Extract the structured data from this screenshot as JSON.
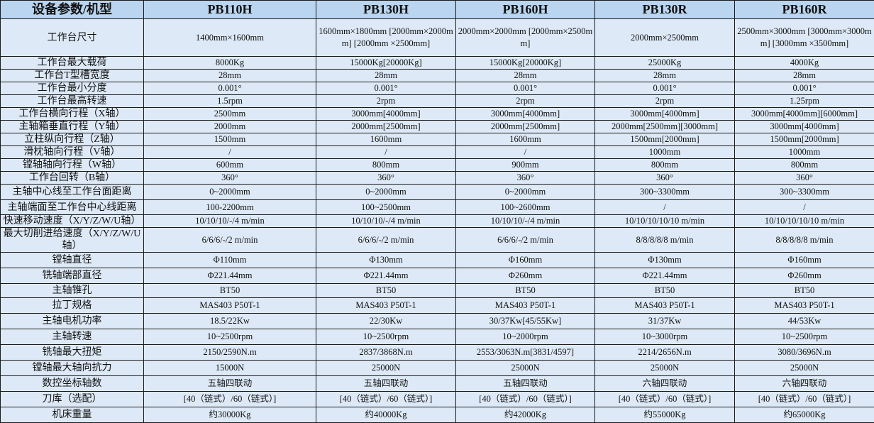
{
  "header": {
    "corner": "设备参数/机型",
    "models": [
      "PB110H",
      "PB130H",
      "PB160H",
      "PB130R",
      "PB160R"
    ]
  },
  "rows": [
    {
      "label": "工作台尺寸",
      "values": [
        "1400mm×1600mm",
        "1600mm×1800mm [2000mm×2000mm] [2000mm ×2500mm]",
        "2000mm×2000mm [2000mm×2500mm]",
        "2000mm×2500mm",
        "2500mm×3000mm [3000mm×3000mm] [3000mm ×3500mm]"
      ]
    },
    {
      "label": "工作台最大载荷",
      "values": [
        "8000Kg",
        "15000Kg[20000Kg]",
        "15000Kg[20000Kg]",
        "25000Kg",
        "4000Kg"
      ]
    },
    {
      "label": "工作台T型槽宽度",
      "values": [
        "28mm",
        "28mm",
        "28mm",
        "28mm",
        "28mm"
      ]
    },
    {
      "label": "工作台最小分度",
      "values": [
        "0.001°",
        "0.001°",
        "0.001°",
        "0.001°",
        "0.001°"
      ]
    },
    {
      "label": "工作台最高转速",
      "values": [
        "1.5rpm",
        "2rpm",
        "2rpm",
        "2rpm",
        "1.25rpm"
      ]
    },
    {
      "label": "工作台横向行程（X轴）",
      "values": [
        "2500mm",
        "3000mm[4000mm]",
        "3000mm[4000mm]",
        "3000mm[4000mm]",
        "3000mm[4000mm][6000mm]"
      ]
    },
    {
      "label": "主轴箱垂直行程（Y轴）",
      "values": [
        "2000mm",
        "2000mm[2500mm]",
        "2000mm[2500mm]",
        "2000mm[2500mm][3000mm]",
        "3000mm[4000mm]"
      ]
    },
    {
      "label": "立柱纵向行程（Z轴）",
      "values": [
        "1500mm",
        "1600mm",
        "1600mm",
        "1500mm[2000mm]",
        "1500mm[2000mm]"
      ]
    },
    {
      "label": "滑枕轴向行程（V轴）",
      "values": [
        "/",
        "/",
        "/",
        "1000mm",
        "1000mm"
      ]
    },
    {
      "label": "镗轴轴向行程（W轴）",
      "values": [
        "600mm",
        "800mm",
        "900mm",
        "800mm",
        "800mm"
      ]
    },
    {
      "label": "工作台回转（B轴）",
      "values": [
        "360°",
        "360°",
        "360°",
        "360°",
        "360°"
      ]
    },
    {
      "label": "主轴中心线至工作台面距离",
      "values": [
        "0~2000mm",
        "0~2000mm",
        "0~2000mm",
        "300~3300mm",
        "300~3300mm"
      ]
    },
    {
      "label": "主轴端面至工作台中心线距离",
      "values": [
        "100-2200mm",
        "100~2500mm",
        "100~2600mm",
        "/",
        "/"
      ]
    },
    {
      "label": "快速移动速度（X/Y/Z/W/U轴）",
      "values": [
        "10/10/10/-/4 m/min",
        "10/10/10/-/4 m/min",
        "10/10/10/-/4 m/min",
        "10/10/10/10/10 m/min",
        "10/10/10/10/10 m/min"
      ]
    },
    {
      "label": "最大切削进给速度（X/Y/Z/W/U轴）",
      "values": [
        "6/6/6/-/2 m/min",
        "6/6/6/-/2 m/min",
        "6/6/6/-/2 m/min",
        "8/8/8/8/8 m/min",
        "8/8/8/8/8 m/min"
      ]
    },
    {
      "label": "镗轴直径",
      "values": [
        "Φ110mm",
        "Φ130mm",
        "Φ160mm",
        "Φ130mm",
        "Φ160mm"
      ]
    },
    {
      "label": "铣轴端部直径",
      "values": [
        "Φ221.44mm",
        "Φ221.44mm",
        "Φ260mm",
        "Φ221.44mm",
        "Φ260mm"
      ]
    },
    {
      "label": "主轴锥孔",
      "values": [
        "BT50",
        "BT50",
        "BT50",
        "BT50",
        "BT50"
      ]
    },
    {
      "label": "拉丁规格",
      "values": [
        "MAS403 P50T-1",
        "MAS403 P50T-1",
        "MAS403 P50T-1",
        "MAS403 P50T-1",
        "MAS403 P50T-1"
      ]
    },
    {
      "label": "主轴电机功率",
      "values": [
        "18.5/22Kw",
        "22/30Kw",
        "30/37Kw[45/55Kw]",
        "31/37Kw",
        "44/53Kw"
      ]
    },
    {
      "label": "主轴转速",
      "values": [
        "10~2500rpm",
        "10~2500rpm",
        "10~2000rpm",
        "10~3000rpm",
        "10~2500rpm"
      ]
    },
    {
      "label": "铣轴最大扭矩",
      "values": [
        "2150/2590N.m",
        "2837/3868N.m",
        "2553/3063N.m[3831/4597]",
        "2214/2656N.m",
        "3080/3696N.m"
      ]
    },
    {
      "label": "镗轴最大轴向抗力",
      "values": [
        "15000N",
        "25000N",
        "25000N",
        "25000N",
        "25000N"
      ]
    },
    {
      "label": "数控坐标轴数",
      "values": [
        "五轴四联动",
        "五轴四联动",
        "五轴四联动",
        "六轴四联动",
        "六轴四联动"
      ]
    },
    {
      "label": "刀库（选配）",
      "values": [
        "[40（链式）/60（链式）]",
        "[40（链式）/60（链式）]",
        "[40（链式）/60（链式）]",
        "[40（链式）/60（链式）]",
        "[40（链式）/60（链式）]"
      ]
    },
    {
      "label": "机床重量",
      "values": [
        "约30000Kg",
        "约40000Kg",
        "约42000Kg",
        "约55000Kg",
        "约65000Kg"
      ]
    }
  ],
  "colors": {
    "header_bg": "#b9d5ef",
    "cell_bg": "#dde9f6",
    "border": "#1a1a1a"
  }
}
